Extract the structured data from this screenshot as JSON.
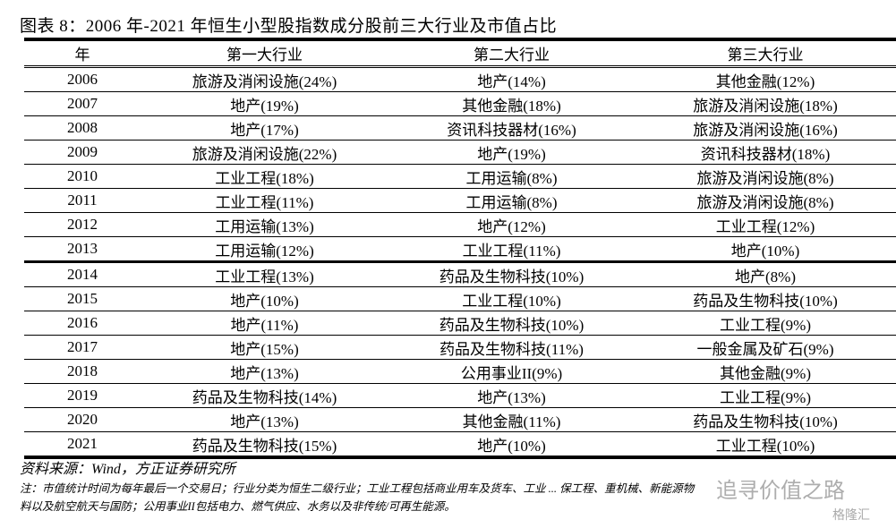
{
  "title": "图表 8：2006 年-2021 年恒生小型股指数成分股前三大行业及市值占比",
  "headers": [
    "年",
    "第一大行业",
    "第二大行业",
    "第三大行业"
  ],
  "rows": [
    [
      "2006",
      "旅游及消闲设施(24%)",
      "地产(14%)",
      "其他金融(12%)"
    ],
    [
      "2007",
      "地产(19%)",
      "其他金融(18%)",
      "旅游及消闲设施(18%)"
    ],
    [
      "2008",
      "地产(17%)",
      "资讯科技器材(16%)",
      "旅游及消闲设施(16%)"
    ],
    [
      "2009",
      "旅游及消闲设施(22%)",
      "地产(19%)",
      "资讯科技器材(18%)"
    ],
    [
      "2010",
      "工业工程(18%)",
      "工用运输(8%)",
      "旅游及消闲设施(8%)"
    ],
    [
      "2011",
      "工业工程(11%)",
      "工用运输(8%)",
      "旅游及消闲设施(8%)"
    ],
    [
      "2012",
      "工用运输(13%)",
      "地产(12%)",
      "工业工程(12%)"
    ],
    [
      "2013",
      "工用运输(12%)",
      "工业工程(11%)",
      "地产(10%)"
    ],
    [
      "2014",
      "工业工程(13%)",
      "药品及生物科技(10%)",
      "地产(8%)"
    ],
    [
      "2015",
      "地产(10%)",
      "工业工程(10%)",
      "药品及生物科技(10%)"
    ],
    [
      "2016",
      "地产(11%)",
      "药品及生物科技(10%)",
      "工业工程(9%)"
    ],
    [
      "2017",
      "地产(15%)",
      "药品及生物科技(11%)",
      "一般金属及矿石(9%)"
    ],
    [
      "2018",
      "地产(13%)",
      "公用事业II(9%)",
      "其他金融(9%)"
    ],
    [
      "2019",
      "药品及生物科技(14%)",
      "地产(13%)",
      "工业工程(9%)"
    ],
    [
      "2020",
      "地产(13%)",
      "其他金融(11%)",
      "药品及生物科技(10%)"
    ],
    [
      "2021",
      "药品及生物科技(15%)",
      "地产(10%)",
      "工业工程(10%)"
    ]
  ],
  "source": "资料来源：Wind，方正证券研究所",
  "note": "注：市值统计时间为每年最后一个交易日；行业分类为恒生二级行业；工业工程包括商业用车及货车、工业 ... 保工程、重机械、新能源物料以及航空航天与国防；公用事业II包括电力、燃气供应、水务以及非传统/可再生能源。",
  "watermark": "追寻价值之路",
  "watermark2": "格隆汇"
}
